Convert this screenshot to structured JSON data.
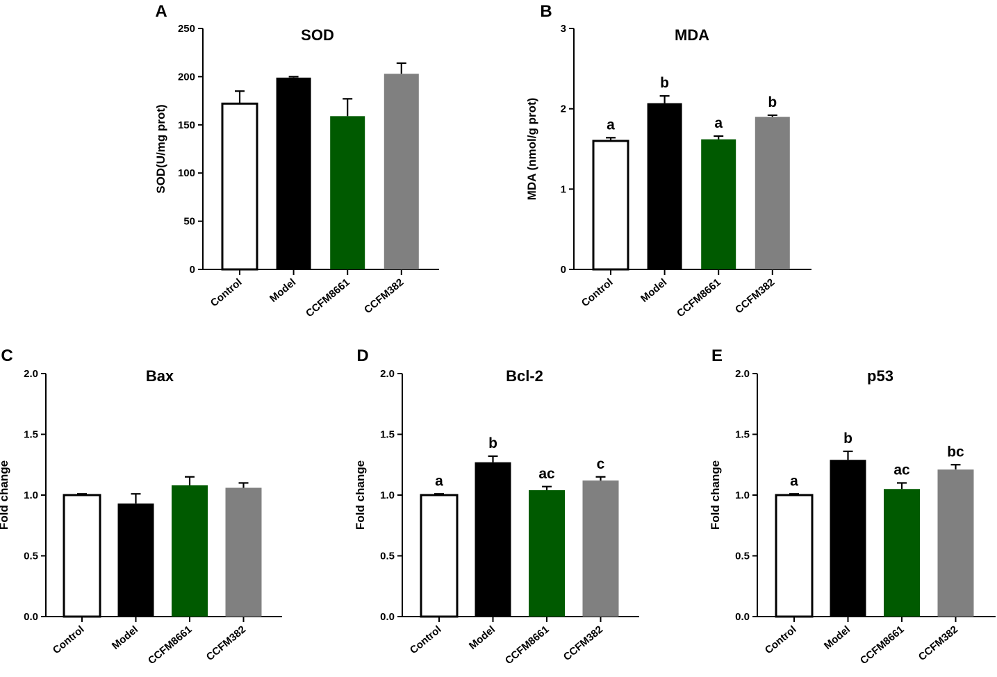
{
  "colors": {
    "Control": "#ffffff",
    "Model": "#000000",
    "CCFM8661": "#005a00",
    "CCFM382": "#808080"
  },
  "chart_data": [
    {
      "type": "bar",
      "panel": "A",
      "title": "SOD",
      "ylabel": "SOD(U/mg prot)",
      "xlabel": "",
      "ylim": [
        0,
        250
      ],
      "yticks": [
        0,
        50,
        100,
        150,
        200,
        250
      ],
      "ytick_labels": [
        "0",
        "50",
        "100",
        "150",
        "200",
        "250"
      ],
      "categories": [
        "Control",
        "Model",
        "CCFM8661",
        "CCFM382"
      ],
      "values": [
        172,
        199,
        159,
        203
      ],
      "errors": [
        13,
        1,
        18,
        11
      ],
      "significance": [
        "",
        "",
        "",
        ""
      ]
    },
    {
      "type": "bar",
      "panel": "B",
      "title": "MDA",
      "ylabel": "MDA (nmol/g prot)",
      "xlabel": "",
      "ylim": [
        0,
        3
      ],
      "yticks": [
        0,
        1,
        2,
        3
      ],
      "ytick_labels": [
        "0",
        "1",
        "2",
        "3"
      ],
      "categories": [
        "Control",
        "Model",
        "CCFM8661",
        "CCFM382"
      ],
      "values": [
        1.6,
        2.07,
        1.62,
        1.9
      ],
      "errors": [
        0.04,
        0.09,
        0.04,
        0.02
      ],
      "significance": [
        "a",
        "b",
        "a",
        "b"
      ]
    },
    {
      "type": "bar",
      "panel": "C",
      "title": "Bax",
      "ylabel": "Fold change",
      "xlabel": "",
      "ylim": [
        0,
        2
      ],
      "yticks": [
        0,
        0.5,
        1,
        1.5,
        2
      ],
      "ytick_labels": [
        "0.0",
        "0.5",
        "1.0",
        "1.5",
        "2.0"
      ],
      "categories": [
        "Control",
        "Model",
        "CCFM8661",
        "CCFM382"
      ],
      "values": [
        1.0,
        0.93,
        1.08,
        1.06
      ],
      "errors": [
        0.01,
        0.08,
        0.07,
        0.04
      ],
      "significance": [
        "",
        "",
        "",
        ""
      ]
    },
    {
      "type": "bar",
      "panel": "D",
      "title": "Bcl-2",
      "ylabel": "Fold change",
      "xlabel": "",
      "ylim": [
        0,
        2
      ],
      "yticks": [
        0,
        0.5,
        1,
        1.5,
        2
      ],
      "ytick_labels": [
        "0.0",
        "0.5",
        "1.0",
        "1.5",
        "2.0"
      ],
      "categories": [
        "Control",
        "Model",
        "CCFM8661",
        "CCFM382"
      ],
      "values": [
        1.0,
        1.27,
        1.04,
        1.12
      ],
      "errors": [
        0.01,
        0.05,
        0.03,
        0.03
      ],
      "significance": [
        "a",
        "b",
        "ac",
        "c"
      ]
    },
    {
      "type": "bar",
      "panel": "E",
      "title": "p53",
      "ylabel": "Fold change",
      "xlabel": "",
      "ylim": [
        0,
        2
      ],
      "yticks": [
        0,
        0.5,
        1,
        1.5,
        2
      ],
      "ytick_labels": [
        "0.0",
        "0.5",
        "1.0",
        "1.5",
        "2.0"
      ],
      "categories": [
        "Control",
        "Model",
        "CCFM8661",
        "CCFM382"
      ],
      "values": [
        1.0,
        1.29,
        1.05,
        1.21
      ],
      "errors": [
        0.01,
        0.07,
        0.05,
        0.04
      ],
      "significance": [
        "a",
        "b",
        "ac",
        "bc"
      ]
    }
  ]
}
